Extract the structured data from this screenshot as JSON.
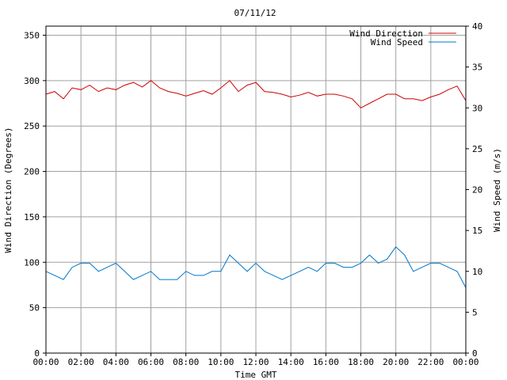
{
  "chart_data": {
    "type": "line",
    "title": "07/11/12",
    "xlabel": "Time GMT",
    "ylabel_left": "Wind Direction (Degrees)",
    "ylabel_right": "Wind Speed (m/s)",
    "x_ticks": [
      "00:00",
      "02:00",
      "04:00",
      "06:00",
      "08:00",
      "10:00",
      "12:00",
      "14:00",
      "16:00",
      "18:00",
      "20:00",
      "22:00",
      "00:00"
    ],
    "x_range_hours": [
      0,
      24
    ],
    "y_left_range": [
      0,
      360
    ],
    "y_left_ticks": [
      0,
      50,
      100,
      150,
      200,
      250,
      300,
      350
    ],
    "y_right_range": [
      0,
      40
    ],
    "y_right_ticks": [
      0,
      5,
      10,
      15,
      20,
      25,
      30,
      35,
      40
    ],
    "grid": true,
    "legend_position": "top-right",
    "series": [
      {
        "name": "Wind Direction",
        "axis": "left",
        "color": "#cc0000",
        "x_hours": [
          0,
          0.5,
          1,
          1.5,
          2,
          2.5,
          3,
          3.5,
          4,
          4.5,
          5,
          5.5,
          6,
          6.5,
          7,
          7.5,
          8,
          8.5,
          9,
          9.5,
          10,
          10.5,
          11,
          11.5,
          12,
          12.5,
          13,
          13.5,
          14,
          14.5,
          15,
          15.5,
          16,
          16.5,
          17,
          17.5,
          18,
          18.5,
          19,
          19.5,
          20,
          20.5,
          21,
          21.5,
          22,
          22.5,
          23,
          23.5,
          24
        ],
        "values": [
          285,
          288,
          280,
          292,
          290,
          295,
          288,
          292,
          290,
          295,
          298,
          293,
          300,
          292,
          288,
          286,
          283,
          286,
          289,
          285,
          292,
          300,
          288,
          295,
          298,
          288,
          287,
          285,
          282,
          284,
          287,
          283,
          285,
          285,
          283,
          280,
          270,
          275,
          280,
          285,
          285,
          280,
          280,
          278,
          282,
          285,
          290,
          294,
          278
        ]
      },
      {
        "name": "Wind Speed",
        "axis": "right",
        "color": "#0077cc",
        "x_hours": [
          0,
          0.5,
          1,
          1.5,
          2,
          2.5,
          3,
          3.5,
          4,
          4.5,
          5,
          5.5,
          6,
          6.5,
          7,
          7.5,
          8,
          8.5,
          9,
          9.5,
          10,
          10.5,
          11,
          11.5,
          12,
          12.5,
          13,
          13.5,
          14,
          14.5,
          15,
          15.5,
          16,
          16.5,
          17,
          17.5,
          18,
          18.5,
          19,
          19.5,
          20,
          20.5,
          21,
          21.5,
          22,
          22.5,
          23,
          23.5,
          24
        ],
        "values": [
          10,
          9.5,
          9,
          10.5,
          11,
          11,
          10,
          10.5,
          11,
          10,
          9,
          9.5,
          10,
          9,
          9,
          9,
          10,
          9.5,
          9.5,
          10,
          10,
          12,
          11,
          10,
          11,
          10,
          9.5,
          9,
          9.5,
          10,
          10.5,
          10,
          11,
          11,
          10.5,
          10.5,
          11,
          12,
          11,
          11.5,
          13,
          12,
          10,
          10.5,
          11,
          11,
          10.5,
          10,
          8
        ]
      }
    ]
  }
}
